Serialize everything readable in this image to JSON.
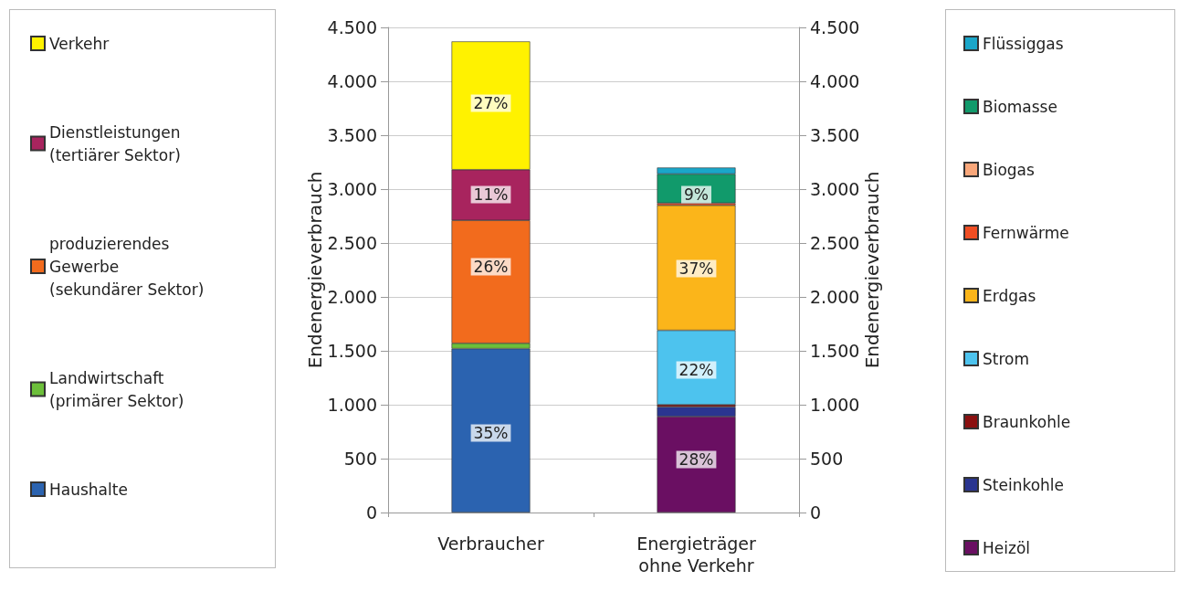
{
  "chart_data": {
    "type": "bar",
    "stacked": true,
    "categories": [
      "Verbraucher",
      "Energieträger\nohne Verkehr"
    ],
    "ylabel": "Endenergieverbrauch",
    "y2label": "Endenergieverbrauch",
    "ylim": [
      0,
      4500
    ],
    "yticks": [
      0,
      500,
      {
        "value": 1000,
        "label": "1.000"
      },
      {
        "value": 1500,
        "label": "1.500"
      },
      {
        "value": 2000,
        "label": "2.000"
      },
      {
        "value": 2500,
        "label": "2.500"
      },
      {
        "value": 3000,
        "label": "3.000"
      },
      {
        "value": 3500,
        "label": "3.500"
      },
      {
        "value": 4000,
        "label": "4.000"
      },
      {
        "value": 4500,
        "label": "4.500"
      }
    ],
    "y2lim": [
      0,
      4500
    ],
    "y2ticks": [
      0,
      500,
      {
        "value": 1000,
        "label": "1.000"
      },
      {
        "value": 1500,
        "label": "1.500"
      },
      {
        "value": 2000,
        "label": "2.000"
      },
      {
        "value": 2500,
        "label": "2.500"
      },
      {
        "value": 3000,
        "label": "3.000"
      },
      {
        "value": 3500,
        "label": "3.500"
      },
      {
        "value": 4000,
        "label": "4.000"
      },
      {
        "value": 4500,
        "label": "4.500"
      }
    ],
    "grid": "y",
    "legend": "left",
    "series": [
      {
        "name": "Haushalte",
        "color": "#2b63b0",
        "values": [
          1520,
          null
        ]
      },
      {
        "name": "Landwirtschaft\n(primärer Sektor)",
        "color": "#6cbf3a",
        "values": [
          50,
          null
        ]
      },
      {
        "name": "produzierendes\nGewerbe\n(sekundärer Sektor)",
        "color": "#f26b1d",
        "values": [
          1140,
          null
        ]
      },
      {
        "name": "Dienstleistungen\n(tertiärer Sektor)",
        "color": "#a8245e",
        "values": [
          470,
          null
        ]
      },
      {
        "name": "Verkehr",
        "color": "#fff200",
        "values": [
          1190,
          null
        ]
      },
      {
        "name": "Heizöl",
        "color": "#6a0f62",
        "values": [
          null,
          890
        ]
      },
      {
        "name": "Steinkohle",
        "color": "#2a3590",
        "values": [
          null,
          90
        ]
      },
      {
        "name": "Braunkohle",
        "color": "#8b1010",
        "values": [
          null,
          20
        ]
      },
      {
        "name": "Strom",
        "color": "#4dc3ee",
        "values": [
          null,
          690
        ]
      },
      {
        "name": "Erdgas",
        "color": "#fbb51a",
        "values": [
          null,
          1160
        ]
      },
      {
        "name": "Fernwärme",
        "color": "#f04e23",
        "values": [
          null,
          20
        ]
      },
      {
        "name": "Biogas",
        "color": "#f9a77a",
        "values": [
          null,
          null
        ]
      },
      {
        "name": "Biomasse",
        "color": "#119a6b",
        "values": [
          null,
          270
        ]
      },
      {
        "name": "Flüssiggas",
        "color": "#1aa6c9",
        "values": [
          null,
          60
        ]
      }
    ],
    "annotations": [
      "35%",
      "26%",
      "11%",
      "27%",
      "28%",
      "22%",
      "37%",
      "9%"
    ]
  }
}
